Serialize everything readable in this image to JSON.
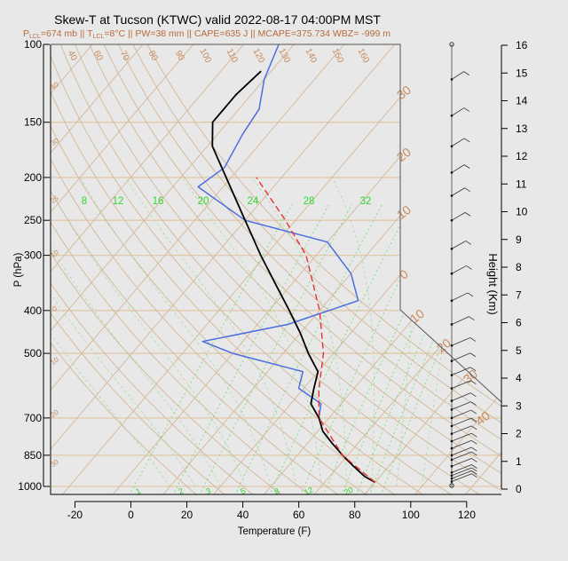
{
  "chart_data": {
    "type": "line",
    "title": "Skew-T at Tucson (KTWC) valid 2022-08-17 04:00PM MST",
    "subtitle": {
      "p1": "P",
      "s1": "LCL",
      "t1": "=674 mb || T",
      "s2": "LCL",
      "t2": "=8°C || PW=38 mm || CAPE=635 J || MCAPE=375.734 WBZ= -999 m"
    },
    "xlabel": "Temperature (F)",
    "ylabel": "P (hPa)",
    "y2label": "Height (Km)",
    "xlim": [
      -28,
      128
    ],
    "ylim": [
      1050,
      100
    ],
    "x_ticks": [
      -20,
      0,
      20,
      40,
      60,
      80,
      100,
      120
    ],
    "p_ticks": [
      100,
      150,
      200,
      250,
      300,
      400,
      500,
      700,
      850,
      1000
    ],
    "height_ticks": [
      0,
      1,
      2,
      3,
      4,
      5,
      6,
      7,
      8,
      9,
      10,
      11,
      12,
      13,
      14,
      15,
      16
    ],
    "mixing_ratio_labels": [
      "8",
      "12",
      "16",
      "20",
      "24",
      "28",
      "32"
    ],
    "bottom_mixing_labels": [
      "1",
      "2",
      "3",
      "5",
      "8",
      "12",
      "20"
    ],
    "isotherm_labels": [
      "0",
      "10",
      "20",
      "30",
      "40"
    ],
    "dry_adiabat_labels": [
      "40",
      "60",
      "70",
      "80",
      "90",
      "100",
      "110",
      "120",
      "130",
      "140",
      "150",
      "160"
    ],
    "series": [
      {
        "name": "temperature",
        "color": "#000000",
        "points": [
          [
            979,
            30
          ],
          [
            950,
            27
          ],
          [
            900,
            23
          ],
          [
            850,
            19
          ],
          [
            800,
            15
          ],
          [
            750,
            11
          ],
          [
            700,
            8
          ],
          [
            650,
            4
          ],
          [
            600,
            2
          ],
          [
            550,
            0
          ],
          [
            500,
            -5
          ],
          [
            450,
            -10
          ],
          [
            400,
            -16
          ],
          [
            350,
            -23
          ],
          [
            300,
            -31
          ],
          [
            250,
            -40
          ],
          [
            200,
            -51
          ],
          [
            170,
            -59
          ],
          [
            150,
            -63
          ],
          [
            130,
            -63
          ],
          [
            115,
            -62
          ]
        ]
      },
      {
        "name": "dewpoint",
        "color": "#4a6ee0",
        "points": [
          [
            700,
            8
          ],
          [
            650,
            6
          ],
          [
            600,
            -1
          ],
          [
            550,
            -3
          ],
          [
            500,
            -20
          ],
          [
            470,
            -28
          ],
          [
            430,
            -14
          ],
          [
            380,
            -4
          ],
          [
            330,
            -10
          ],
          [
            280,
            -20
          ],
          [
            250,
            -40
          ],
          [
            210,
            -55
          ],
          [
            190,
            -53
          ],
          [
            160,
            -55
          ],
          [
            140,
            -56
          ],
          [
            120,
            -60
          ],
          [
            100,
            -63
          ]
        ]
      },
      {
        "name": "parcel",
        "color": "#e83030",
        "points": [
          [
            979,
            30
          ],
          [
            850,
            19
          ],
          [
            700,
            8
          ],
          [
            600,
            3
          ],
          [
            500,
            -2
          ],
          [
            400,
            -10
          ],
          [
            300,
            -22
          ],
          [
            250,
            -32
          ],
          [
            200,
            -45
          ]
        ]
      }
    ],
    "wind_barbs": [
      {
        "p": 995,
        "km": 0.2,
        "dir": 0,
        "spd": 0
      },
      {
        "p": 975,
        "km": 0.6,
        "dir": 280,
        "spd": 10
      },
      {
        "p": 960,
        "km": 0.8,
        "dir": 280,
        "spd": 10
      },
      {
        "p": 945,
        "km": 1.0,
        "dir": 280,
        "spd": 10
      },
      {
        "p": 930,
        "km": 1.1,
        "dir": 275,
        "spd": 10
      },
      {
        "p": 900,
        "km": 1.5,
        "dir": 270,
        "spd": 10
      },
      {
        "p": 870,
        "km": 1.8,
        "dir": 265,
        "spd": 10
      },
      {
        "p": 850,
        "km": 2.0,
        "dir": 260,
        "spd": 10
      },
      {
        "p": 820,
        "km": 2.3,
        "dir": 260,
        "spd": 10
      },
      {
        "p": 790,
        "km": 2.6,
        "dir": 255,
        "spd": 10
      },
      {
        "p": 760,
        "km": 2.9,
        "dir": 250,
        "spd": 10
      },
      {
        "p": 730,
        "km": 3.3,
        "dir": 245,
        "spd": 10
      },
      {
        "p": 700,
        "km": 3.6,
        "dir": 240,
        "spd": 10
      },
      {
        "p": 670,
        "km": 3.9,
        "dir": 235,
        "spd": 10
      },
      {
        "p": 640,
        "km": 4.3,
        "dir": 230,
        "spd": 10
      },
      {
        "p": 600,
        "km": 4.7,
        "dir": 230,
        "spd": 10
      },
      {
        "p": 560,
        "km": 5.2,
        "dir": 225,
        "spd": 10
      },
      {
        "p": 520,
        "km": 5.6,
        "dir": 220,
        "spd": 10
      },
      {
        "p": 480,
        "km": 6.1,
        "dir": 220,
        "spd": 10
      },
      {
        "p": 430,
        "km": 6.8,
        "dir": 200,
        "spd": 5
      },
      {
        "p": 380,
        "km": 7.4,
        "dir": 180,
        "spd": 10
      },
      {
        "p": 330,
        "km": 8.3,
        "dir": 160,
        "spd": 10
      },
      {
        "p": 290,
        "km": 9.1,
        "dir": 150,
        "spd": 10
      },
      {
        "p": 250,
        "km": 10.3,
        "dir": 140,
        "spd": 10
      },
      {
        "p": 220,
        "km": 11.0,
        "dir": 130,
        "spd": 10
      },
      {
        "p": 195,
        "km": 11.9,
        "dir": 120,
        "spd": 10
      },
      {
        "p": 170,
        "km": 12.5,
        "dir": 120,
        "spd": 10
      },
      {
        "p": 145,
        "km": 13.4,
        "dir": 110,
        "spd": 10
      },
      {
        "p": 120,
        "km": 14.4,
        "dir": 100,
        "spd": 10
      },
      {
        "p": 100,
        "km": 16.0,
        "dir": 0,
        "spd": 0
      }
    ],
    "colors": {
      "background": "#e8e8e8",
      "isobar": "#e3c9a8",
      "isotherm": "#d4b796",
      "dry_adiabat": "#d4b796",
      "moist_adiabat": "#a8dca8",
      "mixing_ratio": "#6cdc6c",
      "brown_label": "#c88a5a",
      "mixing_label": "#2fd62f",
      "subtitle": "#b86a3a"
    }
  }
}
